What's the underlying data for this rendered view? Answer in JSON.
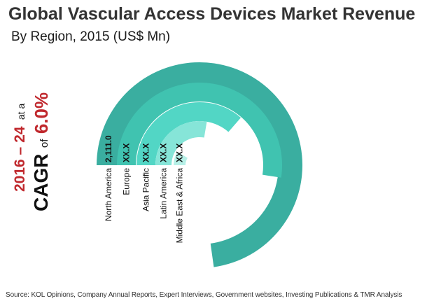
{
  "title": "Global Vascular Access  Devices Market Revenue",
  "subtitle": "By Region, 2015 (US$ Mn)",
  "cagr": {
    "period": "2016 – 24",
    "period_suffix": "at a",
    "label": "CAGR",
    "of_word": "of",
    "value": "6.0%"
  },
  "source": "Source: KOL Opinions, Company Annual Reports, Expert Interviews, Government  websites, Investing Publications & TMR Analysis",
  "colors": {
    "title": "#333333",
    "cagr_period": "#c0282d",
    "cagr_value": "#c0282d",
    "cagr_label": "#111111",
    "ring_1": "#3aaea0",
    "ring_2": "#40c3b0",
    "ring_3": "#52d6c5",
    "ring_4": "#86e5d8",
    "ring_5": "#b6f0e7"
  },
  "chart_data": {
    "type": "radial-bar",
    "title": "Global Vascular Access  Devices Market Revenue",
    "subtitle": "By Region, 2015 (US$ Mn)",
    "unit": "US$ Mn",
    "categories": [
      "North America",
      "Europe",
      "Asia Pacific",
      "Latin America",
      "Middle East & Africa"
    ],
    "value_labels": [
      "2,111.0",
      "XX.X",
      "XX.X",
      "XX.X",
      "XX.X"
    ],
    "values": [
      2111.0,
      null,
      null,
      null,
      null
    ],
    "relative_extent": [
      1.0,
      0.72,
      0.5,
      0.38,
      0.12
    ],
    "legend": "none",
    "grid": false
  }
}
